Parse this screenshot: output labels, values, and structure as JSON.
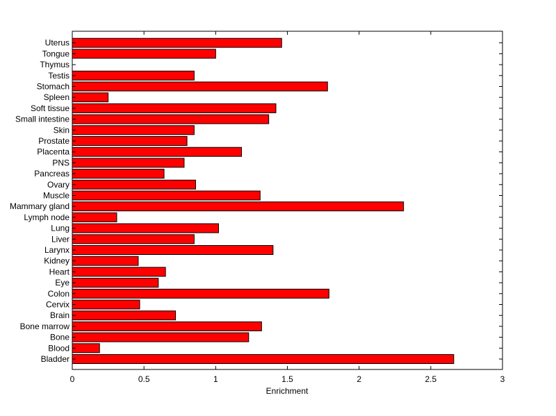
{
  "chart_data": {
    "type": "bar",
    "orientation": "horizontal",
    "title": "",
    "xlabel": "Enrichment",
    "ylabel": "",
    "xlim": [
      0,
      3
    ],
    "xticks": [
      0,
      0.5,
      1,
      1.5,
      2,
      2.5,
      3
    ],
    "xtick_labels": [
      "0",
      "0.5",
      "1",
      "1.5",
      "2",
      "2.5",
      "3"
    ],
    "grid": false,
    "bar_color": "#ff0000",
    "bar_edge_color": "#000000",
    "categories": [
      "Bladder",
      "Blood",
      "Bone",
      "Bone marrow",
      "Brain",
      "Cervix",
      "Colon",
      "Eye",
      "Heart",
      "Kidney",
      "Larynx",
      "Liver",
      "Lung",
      "Lymph node",
      "Mammary gland",
      "Muscle",
      "Ovary",
      "Pancreas",
      "PNS",
      "Placenta",
      "Prostate",
      "Skin",
      "Small intestine",
      "Soft tissue",
      "Spleen",
      "Stomach",
      "Testis",
      "Thymus",
      "Tongue",
      "Uterus"
    ],
    "values": [
      2.66,
      0.19,
      1.23,
      1.32,
      0.72,
      0.47,
      1.79,
      0.6,
      0.65,
      0.46,
      1.4,
      0.85,
      1.02,
      0.31,
      2.31,
      1.31,
      0.86,
      0.64,
      0.78,
      1.18,
      0.8,
      0.85,
      1.37,
      1.42,
      0.25,
      1.78,
      0.85,
      0,
      1.0,
      1.46
    ]
  }
}
